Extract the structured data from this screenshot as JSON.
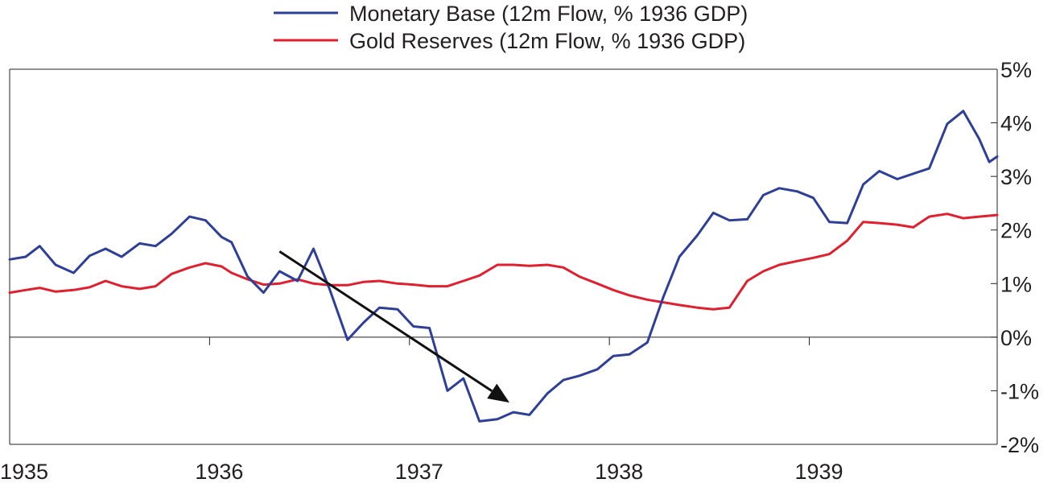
{
  "chart_data": {
    "type": "line",
    "title": "",
    "xlabel": "",
    "ylabel": "",
    "xlim": [
      1935.0,
      1939.94
    ],
    "ylim": [
      -2,
      5
    ],
    "x_ticks": [
      {
        "value": 1935,
        "label": "1935"
      },
      {
        "value": 1936,
        "label": "1936"
      },
      {
        "value": 1937,
        "label": "1937"
      },
      {
        "value": 1938,
        "label": "1938"
      },
      {
        "value": 1939,
        "label": "1939"
      }
    ],
    "y_ticks": [
      {
        "value": 5,
        "label": "5%"
      },
      {
        "value": 4,
        "label": "4%"
      },
      {
        "value": 3,
        "label": "3%"
      },
      {
        "value": 2,
        "label": "2%"
      },
      {
        "value": 1,
        "label": "1%"
      },
      {
        "value": 0,
        "label": "0%"
      },
      {
        "value": -1,
        "label": "-1%"
      },
      {
        "value": -2,
        "label": "-2%"
      }
    ],
    "legend_position": "top-center",
    "grid": false,
    "series": [
      {
        "name": "Monetary Base (12m Flow, % 1936 GDP)",
        "color": "#2e3f97",
        "points": [
          [
            1935.0,
            1.45
          ],
          [
            1935.08,
            1.5
          ],
          [
            1935.15,
            1.7
          ],
          [
            1935.23,
            1.35
          ],
          [
            1935.32,
            1.2
          ],
          [
            1935.4,
            1.52
          ],
          [
            1935.48,
            1.65
          ],
          [
            1935.56,
            1.5
          ],
          [
            1935.65,
            1.75
          ],
          [
            1935.73,
            1.7
          ],
          [
            1935.81,
            1.93
          ],
          [
            1935.9,
            2.25
          ],
          [
            1935.98,
            2.18
          ],
          [
            1936.06,
            1.87
          ],
          [
            1936.11,
            1.77
          ],
          [
            1936.19,
            1.13
          ],
          [
            1936.27,
            0.83
          ],
          [
            1936.35,
            1.23
          ],
          [
            1936.44,
            1.05
          ],
          [
            1936.52,
            1.65
          ],
          [
            1936.6,
            0.9
          ],
          [
            1936.69,
            -0.05
          ],
          [
            1936.77,
            0.27
          ],
          [
            1936.85,
            0.55
          ],
          [
            1936.94,
            0.52
          ],
          [
            1937.02,
            0.2
          ],
          [
            1937.1,
            0.17
          ],
          [
            1937.19,
            -1.0
          ],
          [
            1937.27,
            -0.77
          ],
          [
            1937.35,
            -1.57
          ],
          [
            1937.44,
            -1.53
          ],
          [
            1937.52,
            -1.4
          ],
          [
            1937.6,
            -1.45
          ],
          [
            1937.69,
            -1.05
          ],
          [
            1937.77,
            -0.8
          ],
          [
            1937.85,
            -0.72
          ],
          [
            1937.94,
            -0.6
          ],
          [
            1938.02,
            -0.35
          ],
          [
            1938.1,
            -0.32
          ],
          [
            1938.19,
            -0.1
          ],
          [
            1938.27,
            0.75
          ],
          [
            1938.35,
            1.5
          ],
          [
            1938.44,
            1.9
          ],
          [
            1938.52,
            2.32
          ],
          [
            1938.6,
            2.18
          ],
          [
            1938.69,
            2.2
          ],
          [
            1938.77,
            2.65
          ],
          [
            1938.85,
            2.78
          ],
          [
            1938.94,
            2.72
          ],
          [
            1939.02,
            2.6
          ],
          [
            1939.1,
            2.15
          ],
          [
            1939.19,
            2.13
          ],
          [
            1939.27,
            2.85
          ],
          [
            1939.35,
            3.1
          ],
          [
            1939.44,
            2.95
          ],
          [
            1939.52,
            3.05
          ],
          [
            1939.6,
            3.15
          ],
          [
            1939.69,
            3.98
          ],
          [
            1939.77,
            4.22
          ],
          [
            1939.85,
            3.7
          ],
          [
            1939.9,
            3.27
          ],
          [
            1939.94,
            3.37
          ]
        ]
      },
      {
        "name": "Gold Reserves (12m Flow, % 1936 GDP)",
        "color": "#e0202e",
        "points": [
          [
            1935.0,
            0.83
          ],
          [
            1935.08,
            0.88
          ],
          [
            1935.15,
            0.92
          ],
          [
            1935.23,
            0.85
          ],
          [
            1935.32,
            0.88
          ],
          [
            1935.4,
            0.93
          ],
          [
            1935.48,
            1.05
          ],
          [
            1935.56,
            0.95
          ],
          [
            1935.65,
            0.9
          ],
          [
            1935.73,
            0.95
          ],
          [
            1935.81,
            1.18
          ],
          [
            1935.9,
            1.3
          ],
          [
            1935.98,
            1.38
          ],
          [
            1936.06,
            1.32
          ],
          [
            1936.11,
            1.2
          ],
          [
            1936.19,
            1.08
          ],
          [
            1936.27,
            0.98
          ],
          [
            1936.35,
            1.0
          ],
          [
            1936.44,
            1.08
          ],
          [
            1936.52,
            1.0
          ],
          [
            1936.6,
            0.97
          ],
          [
            1936.69,
            0.97
          ],
          [
            1936.77,
            1.03
          ],
          [
            1936.85,
            1.05
          ],
          [
            1936.94,
            1.0
          ],
          [
            1937.02,
            0.98
          ],
          [
            1937.1,
            0.95
          ],
          [
            1937.19,
            0.95
          ],
          [
            1937.27,
            1.05
          ],
          [
            1937.35,
            1.15
          ],
          [
            1937.44,
            1.35
          ],
          [
            1937.52,
            1.35
          ],
          [
            1937.6,
            1.33
          ],
          [
            1937.69,
            1.35
          ],
          [
            1937.77,
            1.3
          ],
          [
            1937.85,
            1.13
          ],
          [
            1937.94,
            1.0
          ],
          [
            1938.02,
            0.88
          ],
          [
            1938.1,
            0.78
          ],
          [
            1938.19,
            0.7
          ],
          [
            1938.27,
            0.65
          ],
          [
            1938.35,
            0.6
          ],
          [
            1938.44,
            0.55
          ],
          [
            1938.52,
            0.52
          ],
          [
            1938.6,
            0.55
          ],
          [
            1938.69,
            1.05
          ],
          [
            1938.77,
            1.23
          ],
          [
            1938.85,
            1.35
          ],
          [
            1938.94,
            1.42
          ],
          [
            1939.02,
            1.48
          ],
          [
            1939.1,
            1.55
          ],
          [
            1939.19,
            1.8
          ],
          [
            1939.27,
            2.15
          ],
          [
            1939.35,
            2.13
          ],
          [
            1939.44,
            2.1
          ],
          [
            1939.52,
            2.05
          ],
          [
            1939.6,
            2.25
          ],
          [
            1939.69,
            2.3
          ],
          [
            1939.77,
            2.22
          ],
          [
            1939.85,
            2.25
          ],
          [
            1939.94,
            2.28
          ]
        ]
      }
    ],
    "annotations": [
      {
        "type": "arrow",
        "color": "#111111",
        "from": [
          1936.35,
          1.6
        ],
        "to": [
          1937.5,
          -1.22
        ]
      }
    ]
  }
}
